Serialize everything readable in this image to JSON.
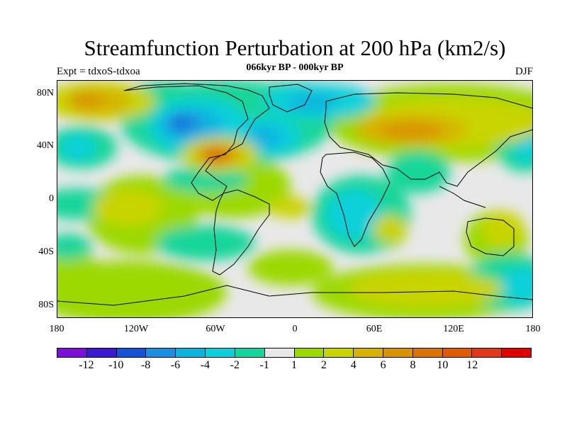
{
  "title": "Streamfunction Perturbation at 200 hPa (km2/s)",
  "subtitle_left": "Expt = tdxoS-tdxoa",
  "subtitle_center": "066kyr BP - 000kyr BP",
  "subtitle_right": "DJF",
  "axes": {
    "lat_ticks": [
      "80N",
      "40N",
      "0",
      "40S",
      "80S"
    ],
    "lon_ticks": [
      "180",
      "120W",
      "60W",
      "0",
      "60E",
      "120E",
      "180"
    ]
  },
  "colorbar": {
    "labels": [
      "-12",
      "-10",
      "-8",
      "-6",
      "-4",
      "-2",
      "-1",
      "1",
      "2",
      "4",
      "6",
      "8",
      "10",
      "12"
    ],
    "colors": [
      "#7a0fd9",
      "#3b18d4",
      "#1552d6",
      "#1a8ee0",
      "#0ab3e0",
      "#0bd0d9",
      "#14d69a",
      "#e8e8e8",
      "#9bd900",
      "#c9d400",
      "#d6b300",
      "#d99200",
      "#d97400",
      "#e05a00",
      "#e03818",
      "#e00000"
    ]
  },
  "map_colors": {
    "ocean_background": "#e8e8e8",
    "coastline": "#000000"
  }
}
